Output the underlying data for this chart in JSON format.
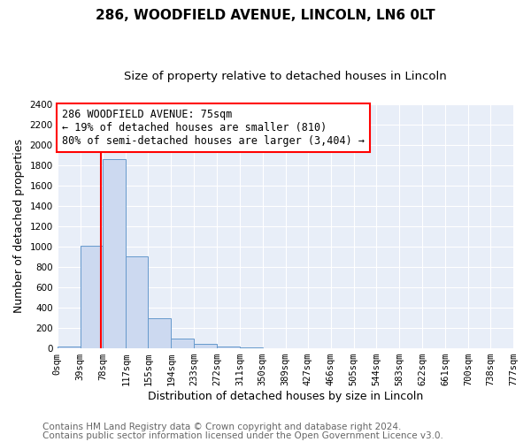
{
  "title": "286, WOODFIELD AVENUE, LINCOLN, LN6 0LT",
  "subtitle": "Size of property relative to detached houses in Lincoln",
  "xlabel": "Distribution of detached houses by size in Lincoln",
  "ylabel": "Number of detached properties",
  "bin_edges": [
    0,
    39,
    78,
    117,
    155,
    194,
    233,
    272,
    311,
    350,
    389,
    427,
    466,
    505,
    544,
    583,
    622,
    661,
    700,
    738,
    777
  ],
  "bin_labels": [
    "0sqm",
    "39sqm",
    "78sqm",
    "117sqm",
    "155sqm",
    "194sqm",
    "233sqm",
    "272sqm",
    "311sqm",
    "350sqm",
    "389sqm",
    "427sqm",
    "466sqm",
    "505sqm",
    "544sqm",
    "583sqm",
    "622sqm",
    "661sqm",
    "700sqm",
    "738sqm",
    "777sqm"
  ],
  "bar_heights": [
    20,
    1010,
    1860,
    900,
    300,
    100,
    45,
    20,
    10,
    0,
    0,
    0,
    0,
    0,
    0,
    0,
    0,
    0,
    0,
    0
  ],
  "bar_color": "#ccd9f0",
  "bar_edge_color": "#6699cc",
  "red_line_x": 75,
  "ylim": [
    0,
    2400
  ],
  "yticks": [
    0,
    200,
    400,
    600,
    800,
    1000,
    1200,
    1400,
    1600,
    1800,
    2000,
    2200,
    2400
  ],
  "annotation_title": "286 WOODFIELD AVENUE: 75sqm",
  "annotation_line1": "← 19% of detached houses are smaller (810)",
  "annotation_line2": "80% of semi-detached houses are larger (3,404) →",
  "footer_line1": "Contains HM Land Registry data © Crown copyright and database right 2024.",
  "footer_line2": "Contains public sector information licensed under the Open Government Licence v3.0.",
  "fig_bg_color": "#ffffff",
  "plot_bg_color": "#e8eef8",
  "title_fontsize": 11,
  "subtitle_fontsize": 9.5,
  "axis_label_fontsize": 9,
  "tick_fontsize": 7.5,
  "footer_fontsize": 7.5,
  "annotation_fontsize": 8.5
}
